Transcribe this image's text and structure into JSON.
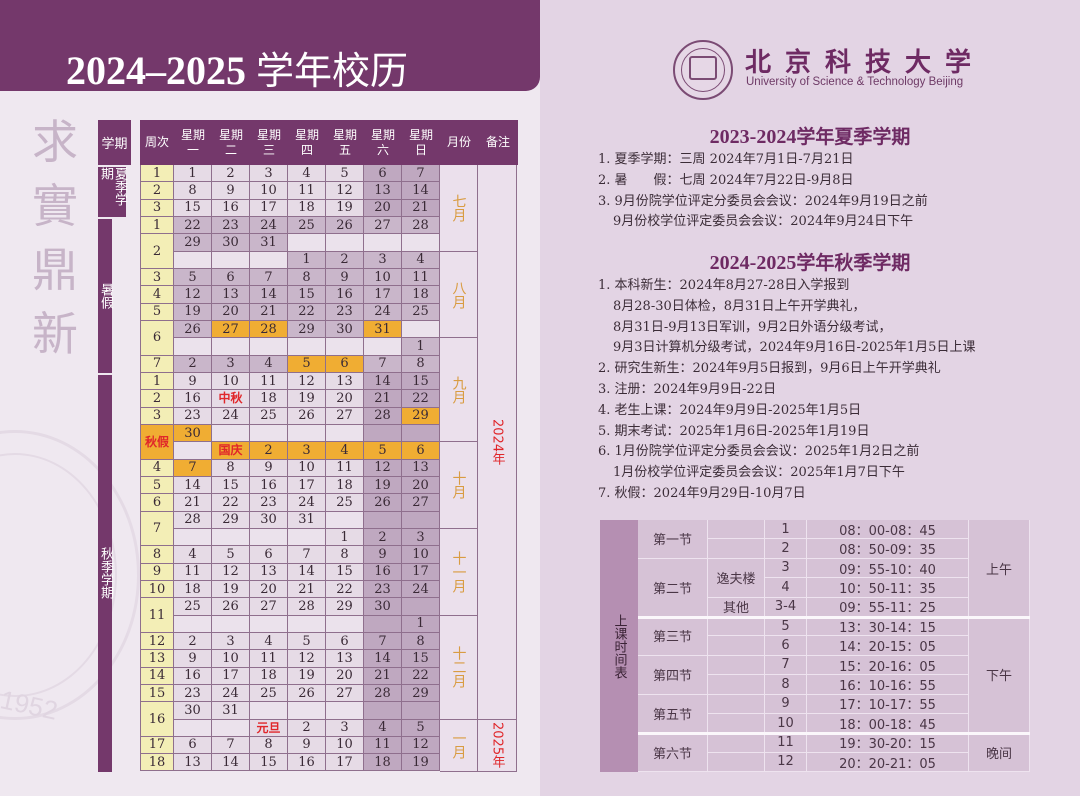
{
  "left": {
    "title_year": "2024–2025",
    "title_cn": "学年校历",
    "motto": "求實鼎新",
    "watermark_year": "1952"
  },
  "calendar": {
    "headers": {
      "term": "学期",
      "week": "周次",
      "days": [
        "星期\n一",
        "星期\n二",
        "星期\n三",
        "星期\n四",
        "星期\n五",
        "星期\n六",
        "星期\n日"
      ],
      "month": "月份",
      "note": "备注"
    },
    "terms": [
      {
        "label": "夏季学期",
        "rows": 3
      },
      {
        "label": "暑假",
        "rows": 9
      },
      {
        "label": "秋季学期",
        "rows": 23
      }
    ],
    "months": [
      {
        "label": "七月",
        "start": 0,
        "rows": 5
      },
      {
        "label": "八月",
        "start": 5,
        "rows": 5
      },
      {
        "label": "九月",
        "start": 10,
        "rows": 6
      },
      {
        "label": "十月",
        "start": 16,
        "rows": 5
      },
      {
        "label": "十一月",
        "start": 21,
        "rows": 5
      },
      {
        "label": "十二月",
        "start": 26,
        "rows": 6
      },
      {
        "label": "一月",
        "start": 32,
        "rows": 3
      }
    ],
    "notes": [
      {
        "label": "2024年",
        "start": 0,
        "rows": 32
      },
      {
        "label": "2025年",
        "start": 32,
        "rows": 3
      }
    ],
    "rows": [
      {
        "week": "1",
        "days": [
          "1",
          "2",
          "3",
          "4",
          "5",
          "6",
          "7"
        ],
        "style": [
          "d",
          "d",
          "d",
          "d",
          "d",
          "weekend",
          "weekend"
        ]
      },
      {
        "week": "2",
        "days": [
          "8",
          "9",
          "10",
          "11",
          "12",
          "13",
          "14"
        ],
        "style": [
          "d",
          "d",
          "d",
          "d",
          "d",
          "weekend",
          "weekend"
        ]
      },
      {
        "week": "3",
        "days": [
          "15",
          "16",
          "17",
          "18",
          "19",
          "20",
          "21"
        ],
        "style": [
          "d",
          "d",
          "d",
          "d",
          "d",
          "weekend",
          "weekend"
        ]
      },
      {
        "week": "1",
        "days": [
          "22",
          "23",
          "24",
          "25",
          "26",
          "27",
          "28"
        ],
        "style": [
          "vac",
          "vac",
          "vac",
          "vac",
          "vac",
          "vac",
          "vac"
        ]
      },
      {
        "week": "2",
        "span": 2,
        "days": [
          "29",
          "30",
          "31",
          "",
          "",
          "",
          ""
        ],
        "style": [
          "vac",
          "vac",
          "vac",
          "blank",
          "blank",
          "blank",
          "blank"
        ]
      },
      {
        "days": [
          "",
          "",
          "",
          "1",
          "2",
          "3",
          "4"
        ],
        "style": [
          "blank",
          "blank",
          "blank",
          "vac",
          "vac",
          "vac",
          "vac"
        ]
      },
      {
        "week": "3",
        "days": [
          "5",
          "6",
          "7",
          "8",
          "9",
          "10",
          "11"
        ],
        "style": [
          "vac",
          "vac",
          "vac",
          "vac",
          "vac",
          "vac",
          "vac"
        ]
      },
      {
        "week": "4",
        "days": [
          "12",
          "13",
          "14",
          "15",
          "16",
          "17",
          "18"
        ],
        "style": [
          "vac",
          "vac",
          "vac",
          "vac",
          "vac",
          "vac",
          "vac"
        ]
      },
      {
        "week": "5",
        "days": [
          "19",
          "20",
          "21",
          "22",
          "23",
          "24",
          "25"
        ],
        "style": [
          "vac",
          "vac",
          "vac",
          "vac",
          "vac",
          "vac",
          "vac"
        ]
      },
      {
        "week": "6",
        "span": 2,
        "days": [
          "26",
          "27",
          "28",
          "29",
          "30",
          "31",
          ""
        ],
        "style": [
          "vac",
          "hol",
          "hol",
          "vac",
          "vac",
          "hol",
          "blank"
        ]
      },
      {
        "days": [
          "",
          "",
          "",
          "",
          "",
          "",
          "1"
        ],
        "style": [
          "blank",
          "blank",
          "blank",
          "blank",
          "blank",
          "blank",
          "vac"
        ]
      },
      {
        "week": "7",
        "days": [
          "2",
          "3",
          "4",
          "5",
          "6",
          "7",
          "8"
        ],
        "style": [
          "vac",
          "vac",
          "vac",
          "hol",
          "hol",
          "vac",
          "vac"
        ]
      },
      {
        "week": "1",
        "days": [
          "9",
          "10",
          "11",
          "12",
          "13",
          "14",
          "15"
        ],
        "style": [
          "d",
          "d",
          "d",
          "d",
          "d",
          "weekend",
          "weekend"
        ]
      },
      {
        "week": "2",
        "days": [
          "16",
          "中秋",
          "18",
          "19",
          "20",
          "21",
          "22"
        ],
        "style": [
          "d",
          "d red",
          "d",
          "d",
          "d",
          "weekend",
          "weekend"
        ]
      },
      {
        "week": "3",
        "days": [
          "23",
          "24",
          "25",
          "26",
          "27",
          "28",
          "29"
        ],
        "style": [
          "d",
          "d",
          "d",
          "d",
          "d",
          "weekend",
          "hol"
        ]
      },
      {
        "week": "秋假",
        "span": 2,
        "weekstyle": "hol",
        "days": [
          "30",
          "",
          "",
          "",
          "",
          "",
          ""
        ],
        "style": [
          "hol",
          "blank",
          "blank",
          "blank",
          "blank",
          "weekend",
          "weekend"
        ]
      },
      {
        "days": [
          "",
          "国庆",
          "2",
          "3",
          "4",
          "5",
          "6"
        ],
        "style": [
          "blank",
          "hol red",
          "hol",
          "hol",
          "hol",
          "hol",
          "hol"
        ]
      },
      {
        "week": "4",
        "days": [
          "7",
          "8",
          "9",
          "10",
          "11",
          "12",
          "13"
        ],
        "style": [
          "hol",
          "d",
          "d",
          "d",
          "d",
          "weekend",
          "weekend"
        ]
      },
      {
        "week": "5",
        "days": [
          "14",
          "15",
          "16",
          "17",
          "18",
          "19",
          "20"
        ],
        "style": [
          "d",
          "d",
          "d",
          "d",
          "d",
          "weekend",
          "weekend"
        ]
      },
      {
        "week": "6",
        "days": [
          "21",
          "22",
          "23",
          "24",
          "25",
          "26",
          "27"
        ],
        "style": [
          "d",
          "d",
          "d",
          "d",
          "d",
          "weekend",
          "weekend"
        ]
      },
      {
        "week": "7",
        "span": 2,
        "days": [
          "28",
          "29",
          "30",
          "31",
          "",
          "",
          ""
        ],
        "style": [
          "d",
          "d",
          "d",
          "d",
          "blank",
          "weekend",
          "weekend"
        ]
      },
      {
        "days": [
          "",
          "",
          "",
          "",
          "1",
          "2",
          "3"
        ],
        "style": [
          "blank",
          "blank",
          "blank",
          "blank",
          "d",
          "weekend",
          "weekend"
        ]
      },
      {
        "week": "8",
        "days": [
          "4",
          "5",
          "6",
          "7",
          "8",
          "9",
          "10"
        ],
        "style": [
          "d",
          "d",
          "d",
          "d",
          "d",
          "weekend",
          "weekend"
        ]
      },
      {
        "week": "9",
        "days": [
          "11",
          "12",
          "13",
          "14",
          "15",
          "16",
          "17"
        ],
        "style": [
          "d",
          "d",
          "d",
          "d",
          "d",
          "weekend",
          "weekend"
        ]
      },
      {
        "week": "10",
        "days": [
          "18",
          "19",
          "20",
          "21",
          "22",
          "23",
          "24"
        ],
        "style": [
          "d",
          "d",
          "d",
          "d",
          "d",
          "weekend",
          "weekend"
        ]
      },
      {
        "week": "11",
        "span": 2,
        "days": [
          "25",
          "26",
          "27",
          "28",
          "29",
          "30",
          ""
        ],
        "style": [
          "d",
          "d",
          "d",
          "d",
          "d",
          "weekend",
          "weekend"
        ]
      },
      {
        "days": [
          "",
          "",
          "",
          "",
          "",
          "",
          "1"
        ],
        "style": [
          "blank",
          "blank",
          "blank",
          "blank",
          "blank",
          "weekend",
          "weekend"
        ]
      },
      {
        "week": "12",
        "days": [
          "2",
          "3",
          "4",
          "5",
          "6",
          "7",
          "8"
        ],
        "style": [
          "d",
          "d",
          "d",
          "d",
          "d",
          "weekend",
          "weekend"
        ]
      },
      {
        "week": "13",
        "days": [
          "9",
          "10",
          "11",
          "12",
          "13",
          "14",
          "15"
        ],
        "style": [
          "d",
          "d",
          "d",
          "d",
          "d",
          "weekend",
          "weekend"
        ]
      },
      {
        "week": "14",
        "days": [
          "16",
          "17",
          "18",
          "19",
          "20",
          "21",
          "22"
        ],
        "style": [
          "d",
          "d",
          "d",
          "d",
          "d",
          "weekend",
          "weekend"
        ]
      },
      {
        "week": "15",
        "days": [
          "23",
          "24",
          "25",
          "26",
          "27",
          "28",
          "29"
        ],
        "style": [
          "d",
          "d",
          "d",
          "d",
          "d",
          "weekend",
          "weekend"
        ]
      },
      {
        "week": "16",
        "span": 2,
        "days": [
          "30",
          "31",
          "",
          "",
          "",
          "",
          ""
        ],
        "style": [
          "d",
          "d",
          "blank",
          "blank",
          "blank",
          "weekend",
          "weekend"
        ]
      },
      {
        "days": [
          "",
          "",
          "元旦",
          "2",
          "3",
          "4",
          "5"
        ],
        "style": [
          "blank",
          "blank",
          "d red",
          "d",
          "d",
          "weekend",
          "weekend"
        ]
      },
      {
        "week": "17",
        "days": [
          "6",
          "7",
          "8",
          "9",
          "10",
          "11",
          "12"
        ],
        "style": [
          "d",
          "d",
          "d",
          "d",
          "d",
          "weekend",
          "weekend"
        ]
      },
      {
        "week": "18",
        "days": [
          "13",
          "14",
          "15",
          "16",
          "17",
          "18",
          "19"
        ],
        "style": [
          "d",
          "d",
          "d",
          "d",
          "d",
          "weekend",
          "weekend"
        ]
      }
    ]
  },
  "university": {
    "name_cn": "北京科技大学",
    "name_en": "University of Science & Technology Beijing"
  },
  "summer_section": {
    "title_year": "2023-2024",
    "title_cn": "学年夏季学期",
    "items": [
      {
        "text": "1. 夏季学期：三周 2024年7月1日-7月21日",
        "indent": false
      },
      {
        "text": "2. 暑　　假：七周 2024年7月22日-9月8日",
        "indent": false
      },
      {
        "text": "3. 9月份院学位评定分委员会会议：2024年9月19日之前",
        "indent": false
      },
      {
        "text": "9月份校学位评定委员会会议：2024年9月24日下午",
        "indent": true
      }
    ]
  },
  "autumn_section": {
    "title_year": "2024-2025",
    "title_cn": "学年秋季学期",
    "items": [
      {
        "text": "1. 本科新生：2024年8月27-28日入学报到",
        "indent": false
      },
      {
        "text": "8月28-30日体检，8月31日上午开学典礼，",
        "indent": true
      },
      {
        "text": "8月31日-9月13日军训，9月2日外语分级考试，",
        "indent": true
      },
      {
        "text": "9月3日计算机分级考试，2024年9月16日-2025年1月5日上课",
        "indent": true
      },
      {
        "text": "2. 研究生新生：2024年9月5日报到，9月6日上午开学典礼",
        "indent": false
      },
      {
        "text": "3. 注册：2024年9月9日-22日",
        "indent": false
      },
      {
        "text": "4. 老生上课：2024年9月9日-2025年1月5日",
        "indent": false
      },
      {
        "text": "5. 期末考试：2025年1月6日-2025年1月19日",
        "indent": false
      },
      {
        "text": "6. 1月份院学位评定分委员会会议：2025年1月2日之前",
        "indent": false
      },
      {
        "text": "1月份校学位评定委员会会议：2025年1月7日下午",
        "indent": true
      },
      {
        "text": "7. 秋假：2024年9月29日-10月7日",
        "indent": false
      }
    ]
  },
  "class_schedule": {
    "side_label": "上课时间表",
    "rows": [
      {
        "num": "1",
        "time": "08：00-08：45"
      },
      {
        "num": "2",
        "time": "08：50-09：35"
      },
      {
        "num": "3",
        "time": "09：55-10：40"
      },
      {
        "num": "4",
        "time": "10：50-11：35"
      },
      {
        "num": "3-4",
        "time": "09：55-11：25"
      },
      {
        "num": "5",
        "time": "13：30-14：15"
      },
      {
        "num": "6",
        "time": "14：20-15：05"
      },
      {
        "num": "7",
        "time": "15：20-16：05"
      },
      {
        "num": "8",
        "time": "16：10-16：55"
      },
      {
        "num": "9",
        "time": "17：10-17：55"
      },
      {
        "num": "10",
        "time": "18：00-18：45"
      },
      {
        "num": "11",
        "time": "19：30-20：15"
      },
      {
        "num": "12",
        "time": "20：20-21：05"
      }
    ],
    "sections": [
      {
        "label": "第一节",
        "start": 0,
        "rows": 2
      },
      {
        "label": "第二节",
        "start": 2,
        "rows": 3
      },
      {
        "label": "第三节",
        "start": 5,
        "rows": 2
      },
      {
        "label": "第四节",
        "start": 7,
        "rows": 2
      },
      {
        "label": "第五节",
        "start": 9,
        "rows": 2
      },
      {
        "label": "第六节",
        "start": 11,
        "rows": 2
      }
    ],
    "buildings": [
      {
        "label": "逸夫楼",
        "start": 2,
        "rows": 2
      },
      {
        "label": "其他",
        "start": 4,
        "rows": 1
      }
    ],
    "periods": [
      {
        "label": "上午",
        "start": 0,
        "rows": 5
      },
      {
        "label": "下午",
        "start": 5,
        "rows": 6
      },
      {
        "label": "晚间",
        "start": 11,
        "rows": 2
      }
    ]
  },
  "colors": {
    "brand_purple": "#74386b",
    "holiday_orange": "#f0ad33",
    "week_yellow": "#f3eeb6",
    "holiday_red": "#e0262a",
    "month_gold": "#d99c42"
  }
}
